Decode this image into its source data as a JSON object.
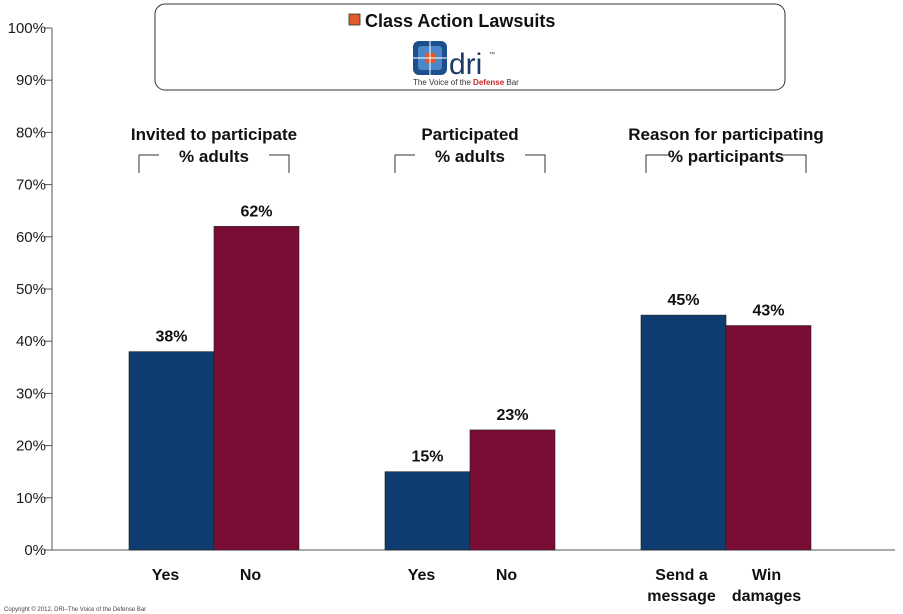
{
  "chart_data": {
    "type": "bar",
    "ylim": [
      0,
      100
    ],
    "yticks": [
      "0%",
      "10%",
      "20%",
      "30%",
      "40%",
      "50%",
      "60%",
      "70%",
      "80%",
      "90%",
      "100%"
    ],
    "groups": [
      {
        "title_line1": "Invited to participate",
        "title_line2": "% adults",
        "bars": [
          {
            "category": "Yes",
            "category_line2": "",
            "value": 38,
            "label": "38%",
            "color": "#0f3c6e"
          },
          {
            "category": "No",
            "category_line2": "",
            "value": 62,
            "label": "62%",
            "color": "#7a0d35"
          }
        ]
      },
      {
        "title_line1": "Participated",
        "title_line2": "% adults",
        "bars": [
          {
            "category": "Yes",
            "category_line2": "",
            "value": 15,
            "label": "15%",
            "color": "#0f3c6e"
          },
          {
            "category": "No",
            "category_line2": "",
            "value": 23,
            "label": "23%",
            "color": "#7a0d35"
          }
        ]
      },
      {
        "title_line1": "Reason for participating",
        "title_line2": "% participants",
        "bars": [
          {
            "category": "Send a",
            "category_line2": "message",
            "value": 45,
            "label": "45%",
            "color": "#0f3c6e"
          },
          {
            "category": "Win",
            "category_line2": "damages",
            "value": 43,
            "label": "43%",
            "color": "#7a0d35"
          }
        ]
      }
    ],
    "legend": {
      "label": "Class Action Lawsuits",
      "marker_color": "#e05a2b",
      "placement": "top-center"
    }
  },
  "logo": {
    "word": "dri",
    "tm": "™",
    "tagline_before": "The Voice of the ",
    "tagline_emphasis": "Defense",
    "tagline_after": " Bar"
  },
  "footer": {
    "copyright": "Copyright © 2012, DRI–The Voice of the Defense Bar"
  }
}
